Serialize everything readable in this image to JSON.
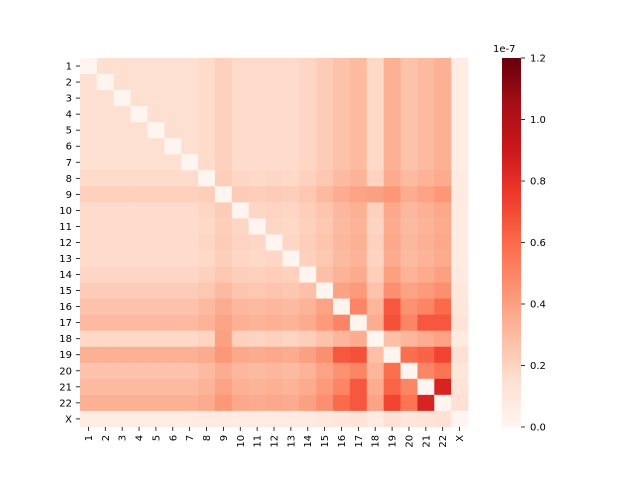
{
  "chart_data": {
    "type": "heatmap",
    "title": "",
    "xlabel": "",
    "ylabel": "",
    "row_labels": [
      "1",
      "2",
      "3",
      "4",
      "5",
      "6",
      "7",
      "8",
      "9",
      "10",
      "11",
      "12",
      "13",
      "14",
      "15",
      "16",
      "17",
      "18",
      "19",
      "20",
      "21",
      "22",
      "X"
    ],
    "col_labels": [
      "1",
      "2",
      "3",
      "4",
      "5",
      "6",
      "7",
      "8",
      "9",
      "10",
      "11",
      "12",
      "13",
      "14",
      "15",
      "16",
      "17",
      "18",
      "19",
      "20",
      "21",
      "22",
      "X"
    ],
    "colorbar": {
      "vmin": 0.0,
      "vmax": 1.2,
      "ticks": [
        "0.0",
        "0.2",
        "0.4",
        "0.6",
        "0.8",
        "1.0",
        "1.2"
      ],
      "tick_values": [
        0.0,
        0.2,
        0.4,
        0.6,
        0.8,
        1.0,
        1.2
      ],
      "exponent_label": "1e-7",
      "colormap": "Reds"
    },
    "row_level": [
      0.12,
      0.12,
      0.12,
      0.12,
      0.12,
      0.12,
      0.12,
      0.14,
      0.19,
      0.15,
      0.14,
      0.15,
      0.14,
      0.17,
      0.22,
      0.28,
      0.32,
      0.16,
      0.36,
      0.28,
      0.32,
      0.36,
      0.06
    ],
    "values": []
  }
}
